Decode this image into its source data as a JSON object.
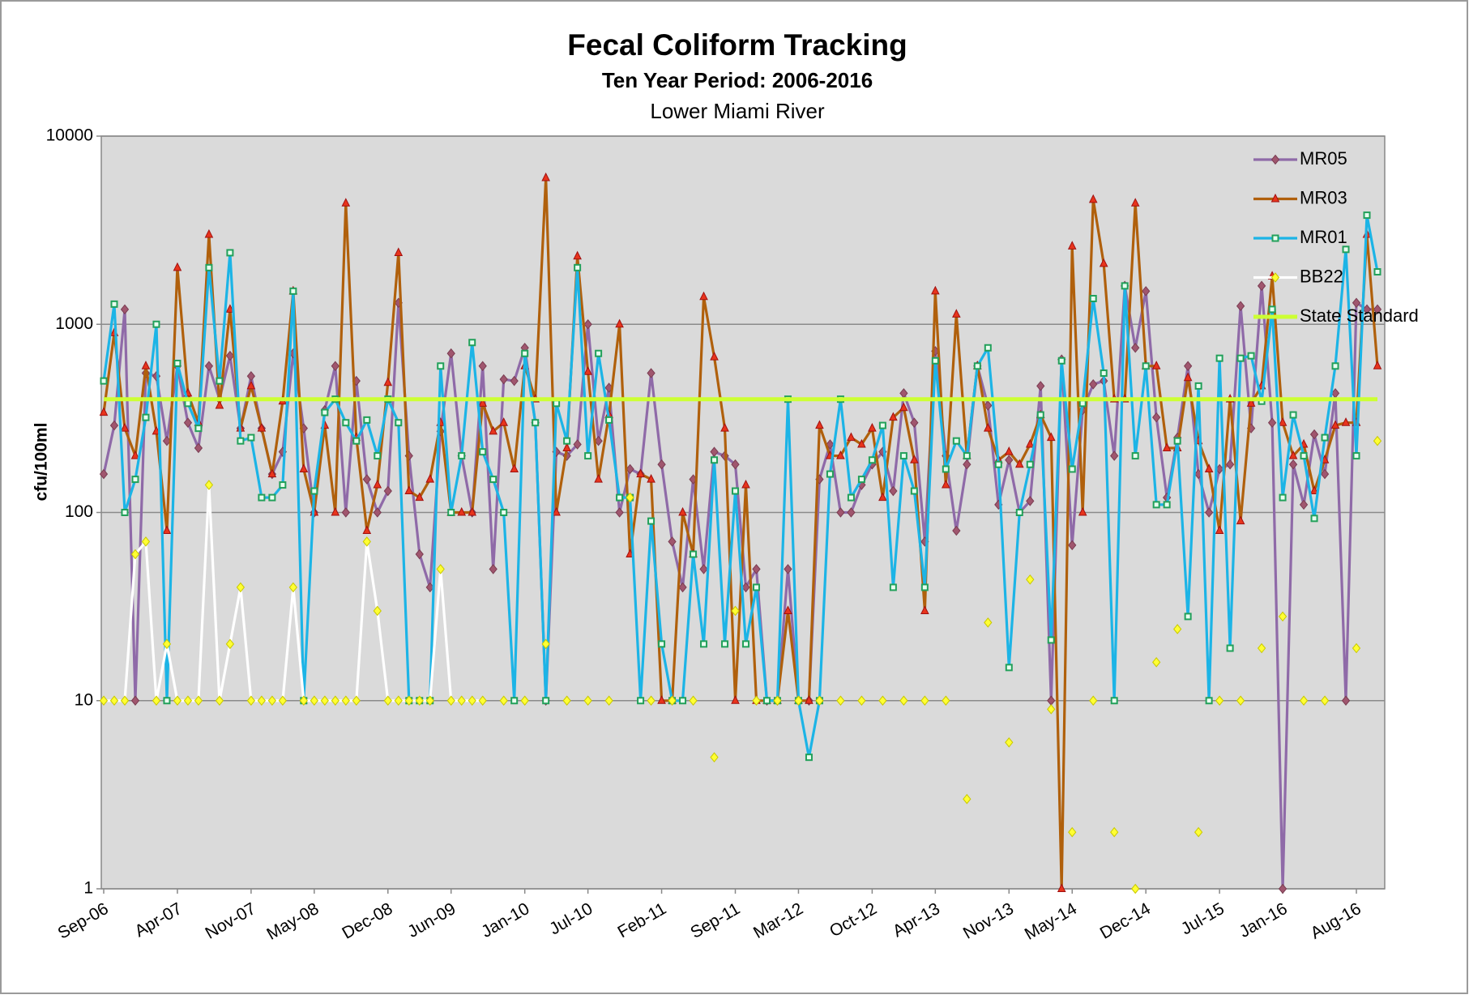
{
  "chart_data": {
    "type": "line",
    "title": "Fecal Coliform Tracking",
    "subtitle": "Ten Year Period: 2006-2016",
    "subtitle2": "Lower Miami River",
    "y_label": "cfu/100ml",
    "log_y": true,
    "grid": true,
    "legend": "upper right",
    "ylim": [
      1,
      10000
    ],
    "yticks": [
      1,
      10,
      100,
      1000,
      10000
    ],
    "xlim": [
      "Sep-06",
      "Oct-16"
    ],
    "xticks": [
      "Sep-06",
      "Apr-07",
      "Nov-07",
      "May-08",
      "Dec-08",
      "Jun-09",
      "Jan-10",
      "Jul-10",
      "Feb-11",
      "Sep-11",
      "Mar-12",
      "Oct-12",
      "Apr-13",
      "Nov-13",
      "May-14",
      "Dec-14",
      "Jul-15",
      "Jan-16",
      "Aug-16"
    ],
    "x": [
      "Sep-06",
      "Oct-06",
      "Nov-06",
      "Dec-06",
      "Jan-07",
      "Feb-07",
      "Mar-07",
      "Apr-07",
      "May-07",
      "Jun-07",
      "Jul-07",
      "Aug-07",
      "Sep-07",
      "Oct-07",
      "Nov-07",
      "Dec-07",
      "Jan-08",
      "Feb-08",
      "Mar-08",
      "Apr-08",
      "May-08",
      "Jun-08",
      "Jul-08",
      "Aug-08",
      "Sep-08",
      "Oct-08",
      "Nov-08",
      "Dec-08",
      "Jan-09",
      "Feb-09",
      "Mar-09",
      "Apr-09",
      "May-09",
      "Jun-09",
      "Jul-09",
      "Aug-09",
      "Sep-09",
      "Oct-09",
      "Nov-09",
      "Dec-09",
      "Jan-10",
      "Feb-10",
      "Mar-10",
      "Apr-10",
      "May-10",
      "Jun-10",
      "Jul-10",
      "Aug-10",
      "Sep-10",
      "Oct-10",
      "Nov-10",
      "Dec-10",
      "Jan-11",
      "Feb-11",
      "Mar-11",
      "Apr-11",
      "May-11",
      "Jun-11",
      "Jul-11",
      "Aug-11",
      "Sep-11",
      "Oct-11",
      "Nov-11",
      "Dec-11",
      "Jan-12",
      "Feb-12",
      "Mar-12",
      "Apr-12",
      "May-12",
      "Jun-12",
      "Jul-12",
      "Aug-12",
      "Sep-12",
      "Oct-12",
      "Nov-12",
      "Dec-12",
      "Jan-13",
      "Feb-13",
      "Mar-13",
      "Apr-13",
      "May-13",
      "Jun-13",
      "Jul-13",
      "Aug-13",
      "Sep-13",
      "Oct-13",
      "Nov-13",
      "Dec-13",
      "Jan-14",
      "Feb-14",
      "Mar-14",
      "Apr-14",
      "May-14",
      "Jun-14",
      "Jul-14",
      "Aug-14",
      "Sep-14",
      "Oct-14",
      "Nov-14",
      "Dec-14",
      "Jan-15",
      "Feb-15",
      "Mar-15",
      "Apr-15",
      "May-15",
      "Jun-15",
      "Jul-15",
      "Aug-15",
      "Sep-15",
      "Oct-15",
      "Nov-15",
      "Dec-15",
      "Jan-16",
      "Feb-16",
      "Mar-16",
      "Apr-16",
      "May-16",
      "Jun-16",
      "Jul-16",
      "Aug-16",
      "Sep-16",
      "Oct-16"
    ],
    "series": [
      {
        "name": "MR05",
        "color": "#8f6aa8",
        "marker": "diamond",
        "marker_color": "#a0566e",
        "values": [
          160,
          290,
          1200,
          10,
          550,
          530,
          240,
          600,
          300,
          220,
          600,
          400,
          680,
          280,
          530,
          280,
          160,
          210,
          700,
          280,
          100,
          350,
          600,
          100,
          500,
          150,
          100,
          130,
          1300,
          200,
          60,
          40,
          270,
          700,
          200,
          100,
          600,
          50,
          510,
          500,
          750,
          300,
          10,
          210,
          200,
          230,
          1000,
          240,
          460,
          100,
          170,
          160,
          550,
          180,
          70,
          40,
          150,
          50,
          210,
          200,
          180,
          40,
          50,
          10,
          10,
          50,
          10,
          10,
          150,
          230,
          100,
          100,
          140,
          180,
          210,
          130,
          430,
          300,
          70,
          720,
          200,
          80,
          180,
          600,
          370,
          110,
          190,
          100,
          115,
          470,
          10,
          650,
          67,
          350,
          480,
          500,
          200,
          1600,
          750,
          1500,
          320,
          120,
          250,
          600,
          160,
          100,
          170,
          180,
          1250,
          280,
          1600,
          300,
          1,
          180,
          110,
          260,
          160,
          430,
          10,
          1300,
          1200,
          1200
        ]
      },
      {
        "name": "MR03",
        "color": "#b0600c",
        "marker": "triangle",
        "marker_color": "#e8341c",
        "values": [
          340,
          900,
          280,
          200,
          600,
          270,
          80,
          2000,
          430,
          300,
          3000,
          370,
          1200,
          280,
          470,
          280,
          160,
          390,
          1500,
          170,
          100,
          290,
          100,
          4400,
          250,
          80,
          140,
          490,
          2400,
          130,
          120,
          150,
          300,
          100,
          100,
          100,
          380,
          270,
          300,
          170,
          600,
          400,
          6000,
          100,
          220,
          2300,
          560,
          150,
          330,
          1000,
          60,
          160,
          150,
          10,
          10,
          100,
          60,
          1400,
          670,
          280,
          10,
          140,
          10,
          10,
          10,
          30,
          10,
          10,
          290,
          200,
          200,
          250,
          230,
          280,
          120,
          320,
          360,
          190,
          30,
          1500,
          140,
          1130,
          200,
          600,
          280,
          190,
          210,
          180,
          230,
          330,
          250,
          1,
          2600,
          100,
          4600,
          2100,
          400,
          400,
          4400,
          600,
          600,
          220,
          220,
          520,
          240,
          170,
          80,
          400,
          90,
          380,
          470,
          1800,
          300,
          200,
          230,
          130,
          190,
          290,
          300,
          300,
          3000,
          600
        ]
      },
      {
        "name": "MR01",
        "color": "#1cb4e6",
        "marker": "square",
        "marker_color": "#22a05a",
        "values": [
          500,
          1280,
          100,
          150,
          320,
          1000,
          10,
          620,
          380,
          280,
          2000,
          500,
          2400,
          240,
          250,
          120,
          120,
          140,
          1500,
          10,
          130,
          340,
          400,
          300,
          240,
          310,
          200,
          400,
          300,
          10,
          10,
          10,
          600,
          100,
          200,
          800,
          210,
          150,
          100,
          10,
          700,
          300,
          10,
          380,
          240,
          2000,
          200,
          700,
          310,
          120,
          120,
          10,
          90,
          20,
          10,
          10,
          60,
          20,
          190,
          20,
          130,
          20,
          40,
          10,
          10,
          400,
          10,
          5,
          10,
          160,
          400,
          120,
          150,
          190,
          290,
          40,
          200,
          130,
          40,
          640,
          170,
          240,
          200,
          600,
          750,
          180,
          15,
          100,
          180,
          330,
          21,
          640,
          170,
          380,
          1370,
          550,
          10,
          1600,
          200,
          600,
          110,
          110,
          240,
          28,
          470,
          10,
          660,
          19,
          660,
          680,
          390,
          1200,
          120,
          330,
          200,
          93,
          250,
          600,
          2500,
          200,
          3800,
          1900
        ]
      },
      {
        "name": "BB22",
        "color": "#ffffff",
        "marker": "diamond",
        "marker_color": "#ffff33",
        "values": [
          10,
          10,
          10,
          60,
          70,
          10,
          20,
          10,
          10,
          10,
          140,
          10,
          20,
          40,
          10,
          10,
          10,
          10,
          40,
          10,
          10,
          10,
          10,
          10,
          10,
          70,
          30,
          10,
          10,
          10,
          10,
          10,
          50,
          10,
          10,
          10,
          10,
          null,
          10,
          null,
          10,
          null,
          20,
          null,
          10,
          null,
          10,
          null,
          10,
          null,
          120,
          null,
          10,
          null,
          10,
          null,
          10,
          null,
          5,
          null,
          30,
          null,
          10,
          null,
          10,
          null,
          10,
          null,
          10,
          null,
          10,
          null,
          10,
          null,
          10,
          null,
          10,
          null,
          10,
          null,
          10,
          null,
          3,
          null,
          26,
          null,
          6,
          null,
          44,
          null,
          9,
          null,
          2,
          null,
          10,
          null,
          2,
          null,
          1,
          null,
          16,
          null,
          24,
          null,
          2,
          null,
          10,
          null,
          10,
          null,
          19,
          null,
          28,
          null,
          10,
          null,
          10,
          null,
          null,
          19,
          null,
          240
        ]
      },
      {
        "name": "State Standard",
        "color": "#ccff33",
        "marker": "none",
        "x": [
          "Sep-06",
          "Oct-16"
        ],
        "values": [
          400,
          400
        ]
      }
    ]
  }
}
